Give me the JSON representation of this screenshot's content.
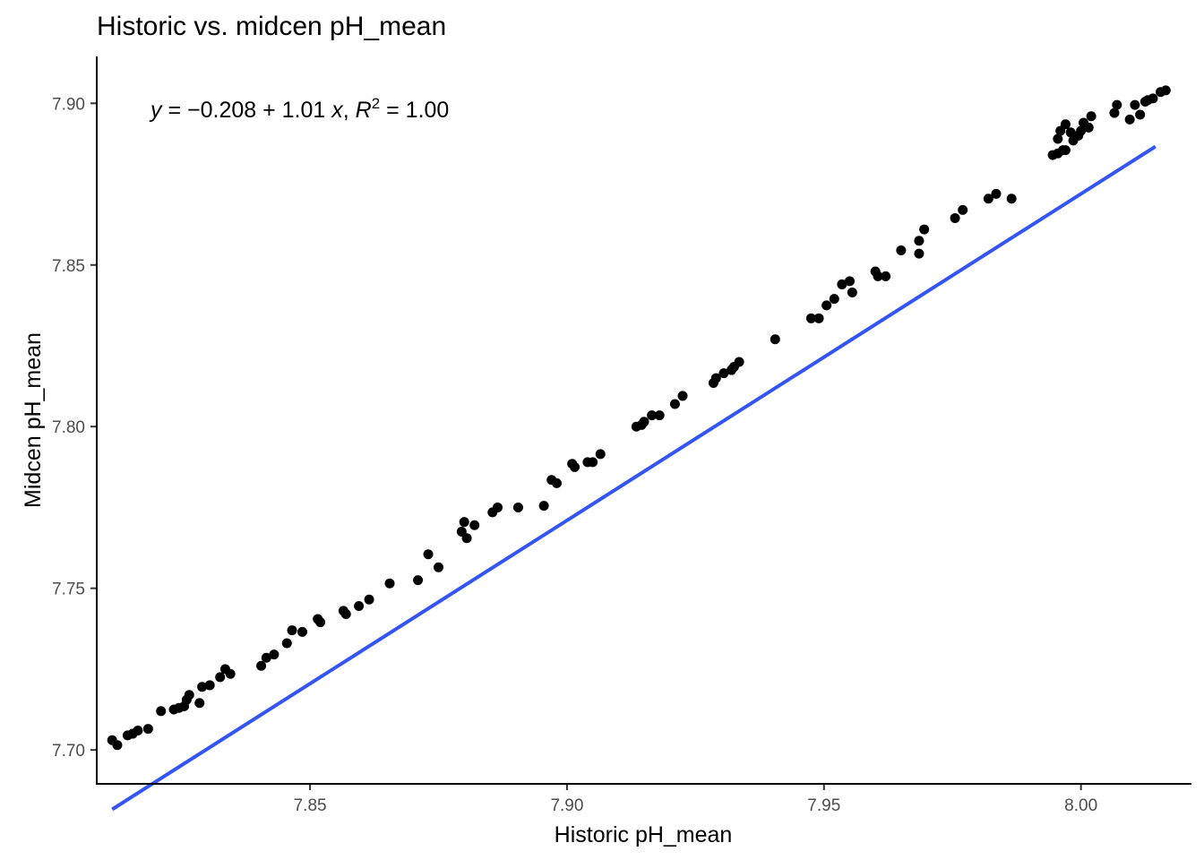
{
  "chart_data": {
    "type": "scatter",
    "title": "Historic vs. midcen pH_mean",
    "xlabel": "Historic pH_mean",
    "ylabel": "Midcen pH_mean",
    "xlim": [
      7.8085,
      8.0215
    ],
    "ylim": [
      7.6895,
      7.9145
    ],
    "x_ticks": [
      "7.85",
      "7.90",
      "7.95",
      "8.00"
    ],
    "y_ticks": [
      "7.70",
      "7.75",
      "7.80",
      "7.85",
      "7.90"
    ],
    "grid": false,
    "legend": "none",
    "annotation": {
      "y": "y",
      "eq": " = −0.208 + 1.01 ",
      "x": "x",
      "sep": ", ",
      "r": "R",
      "sup": "2",
      "r2": " = 1.00"
    },
    "regression": {
      "intercept": -0.208,
      "slope": 1.01,
      "x_range": [
        7.8115,
        8.0145
      ],
      "color": "#3355f5"
    },
    "point_color": "#000000",
    "points": [
      [
        7.8115,
        7.703
      ],
      [
        7.8125,
        7.7015
      ],
      [
        7.8145,
        7.7045
      ],
      [
        7.8155,
        7.705
      ],
      [
        7.8165,
        7.706
      ],
      [
        7.8185,
        7.7065
      ],
      [
        7.821,
        7.712
      ],
      [
        7.8235,
        7.7125
      ],
      [
        7.8245,
        7.713
      ],
      [
        7.8255,
        7.7135
      ],
      [
        7.826,
        7.7155
      ],
      [
        7.8265,
        7.717
      ],
      [
        7.8285,
        7.7145
      ],
      [
        7.829,
        7.7195
      ],
      [
        7.8305,
        7.72
      ],
      [
        7.8325,
        7.7225
      ],
      [
        7.8335,
        7.725
      ],
      [
        7.8345,
        7.7235
      ],
      [
        7.8405,
        7.726
      ],
      [
        7.8415,
        7.7285
      ],
      [
        7.843,
        7.7295
      ],
      [
        7.8455,
        7.733
      ],
      [
        7.8465,
        7.737
      ],
      [
        7.8485,
        7.7365
      ],
      [
        7.8515,
        7.7405
      ],
      [
        7.852,
        7.7395
      ],
      [
        7.8565,
        7.743
      ],
      [
        7.857,
        7.742
      ],
      [
        7.8595,
        7.7445
      ],
      [
        7.8615,
        7.7465
      ],
      [
        7.8655,
        7.7515
      ],
      [
        7.871,
        7.7525
      ],
      [
        7.873,
        7.7605
      ],
      [
        7.875,
        7.7565
      ],
      [
        7.8795,
        7.7675
      ],
      [
        7.88,
        7.7705
      ],
      [
        7.8805,
        7.7655
      ],
      [
        7.882,
        7.7695
      ],
      [
        7.8855,
        7.7735
      ],
      [
        7.8865,
        7.775
      ],
      [
        7.8905,
        7.775
      ],
      [
        7.8955,
        7.7755
      ],
      [
        7.897,
        7.7835
      ],
      [
        7.898,
        7.7825
      ],
      [
        7.901,
        7.7885
      ],
      [
        7.9015,
        7.7875
      ],
      [
        7.904,
        7.789
      ],
      [
        7.905,
        7.789
      ],
      [
        7.9065,
        7.7915
      ],
      [
        7.9135,
        7.8
      ],
      [
        7.9145,
        7.8005
      ],
      [
        7.915,
        7.8015
      ],
      [
        7.9165,
        7.8035
      ],
      [
        7.918,
        7.8035
      ],
      [
        7.921,
        7.807
      ],
      [
        7.9225,
        7.8095
      ],
      [
        7.9285,
        7.8135
      ],
      [
        7.929,
        7.815
      ],
      [
        7.9305,
        7.8165
      ],
      [
        7.932,
        7.8175
      ],
      [
        7.9325,
        7.8185
      ],
      [
        7.9335,
        7.82
      ],
      [
        7.9405,
        7.827
      ],
      [
        7.9475,
        7.8335
      ],
      [
        7.949,
        7.8335
      ],
      [
        7.9505,
        7.8375
      ],
      [
        7.952,
        7.8395
      ],
      [
        7.9535,
        7.844
      ],
      [
        7.955,
        7.845
      ],
      [
        7.9555,
        7.8415
      ],
      [
        7.96,
        7.848
      ],
      [
        7.9605,
        7.8465
      ],
      [
        7.962,
        7.8465
      ],
      [
        7.965,
        7.8545
      ],
      [
        7.9685,
        7.8535
      ],
      [
        7.9685,
        7.8575
      ],
      [
        7.9695,
        7.861
      ],
      [
        7.9755,
        7.8645
      ],
      [
        7.977,
        7.867
      ],
      [
        7.982,
        7.8705
      ],
      [
        7.9835,
        7.872
      ],
      [
        7.9865,
        7.8705
      ],
      [
        7.9945,
        7.884
      ],
      [
        7.9955,
        7.8845
      ],
      [
        7.9965,
        7.8855
      ],
      [
        7.997,
        7.8855
      ],
      [
        7.9955,
        7.889
      ],
      [
        7.996,
        7.8915
      ],
      [
        7.997,
        7.8935
      ],
      [
        7.998,
        7.891
      ],
      [
        7.9985,
        7.8885
      ],
      [
        7.9995,
        7.89
      ],
      [
        8.0,
        7.8915
      ],
      [
        8.0005,
        7.894
      ],
      [
        8.0015,
        7.8925
      ],
      [
        8.002,
        7.896
      ],
      [
        8.0065,
        7.897
      ],
      [
        8.007,
        7.8995
      ],
      [
        8.0095,
        7.895
      ],
      [
        8.0105,
        7.8995
      ],
      [
        8.0115,
        7.8965
      ],
      [
        8.0125,
        7.9005
      ],
      [
        8.013,
        7.901
      ],
      [
        8.014,
        7.9015
      ],
      [
        8.0155,
        7.9035
      ],
      [
        8.0165,
        7.904
      ]
    ]
  }
}
